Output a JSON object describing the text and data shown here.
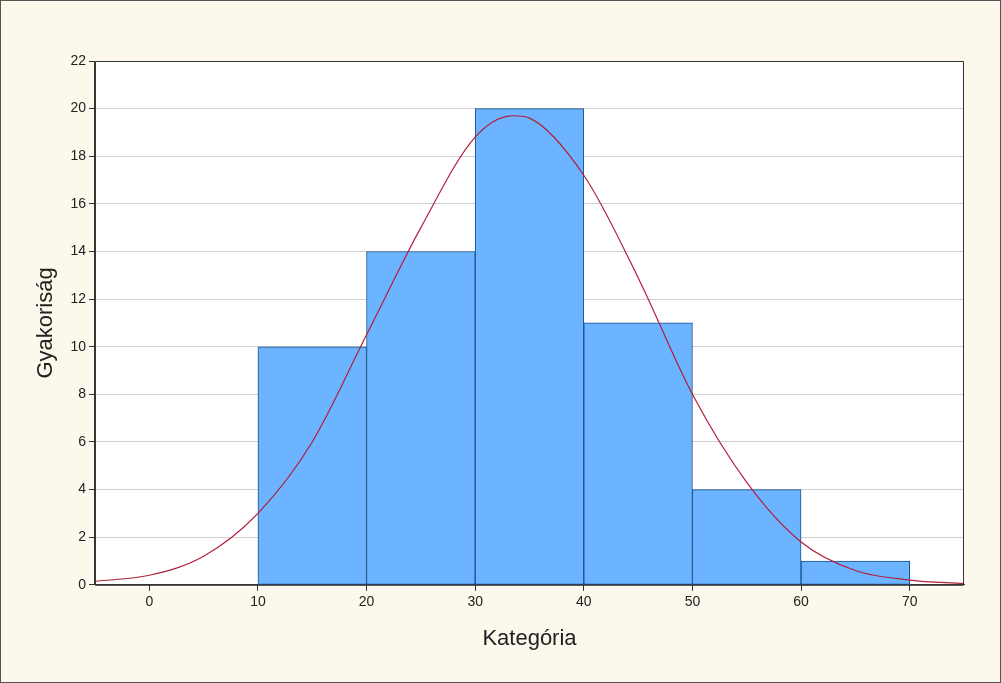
{
  "chart_data": {
    "type": "histogram",
    "xlabel": "Kategória",
    "ylabel": "Gyakoriság",
    "bins": [
      10,
      20,
      30,
      40,
      50,
      60,
      70
    ],
    "values": [
      10,
      14,
      20,
      11,
      4,
      1
    ],
    "color": "#6cb4ff",
    "xlim": [
      -5,
      75
    ],
    "xticks": [
      0,
      10,
      20,
      30,
      40,
      50,
      60,
      70
    ],
    "ylim": [
      0,
      22
    ],
    "yticks": [
      0,
      2,
      4,
      6,
      8,
      10,
      12,
      14,
      16,
      18,
      20,
      22
    ],
    "grid": "y",
    "legend": false,
    "series": [
      {
        "type": "line",
        "color": "#b0203a",
        "x": [
          -5,
          0,
          5,
          10,
          15,
          20,
          25,
          30,
          33.5,
          35,
          40,
          45,
          50,
          55,
          60,
          65,
          70,
          75
        ],
        "values": [
          0.15,
          0.4,
          1.2,
          3,
          6,
          10.5,
          15,
          18.8,
          19.7,
          19.6,
          17.2,
          12.9,
          8,
          4.3,
          1.8,
          0.6,
          0.2,
          0.05
        ]
      }
    ]
  }
}
